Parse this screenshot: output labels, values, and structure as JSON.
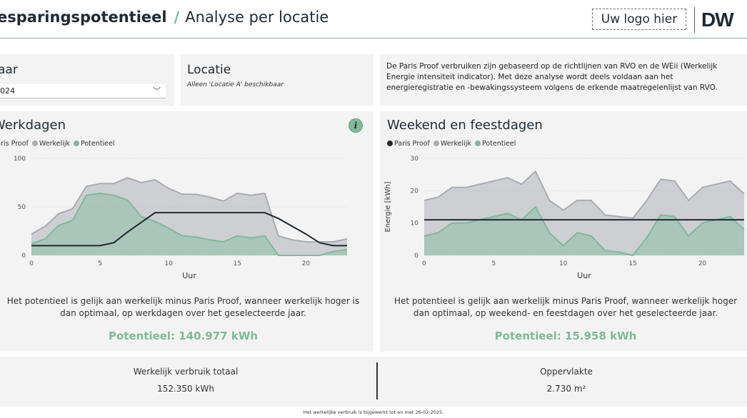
{
  "header": {
    "title_bold": "esparingspotentieel",
    "slash": "/",
    "title_sub": "Analyse per locatie",
    "logo_placeholder": "Uw logo hier",
    "brand": "DW"
  },
  "slicers": {
    "year_label": "aar",
    "year_value": "024",
    "location_label": "Locatie",
    "location_note": "Alleen 'Locatie A' beschikbaar"
  },
  "info_text": {
    "line1": "De Paris Proof verbruiken zijn gebaseerd op de richtlijnen van RVO en de WEii (Werkelijk",
    "line2": "Energie intensiteit indicator). Met deze analyse wordt deels voldaan aan het",
    "line3": "energieregistratie en -bewakingssysteem volgens de erkende maatregelenlijst van RVO."
  },
  "weekdays": {
    "title": "Werkdagen",
    "legend": [
      "Paris Proof",
      "Werkelijk",
      "Potentieel"
    ],
    "xlabel": "Uur",
    "description_line1": "Het potentieel is gelijk aan werkelijk minus Paris Proof, wanneer werkelijk hoger is",
    "description_line2": "dan optimaal, op werkdagen over het geselecteerde jaar.",
    "potential": "Potentieel: 140.977 kWh"
  },
  "weekend": {
    "title": "Weekend en feestdagen",
    "legend": [
      "Paris Proof",
      "Werkelijk",
      "Potentieel"
    ],
    "xlabel": "Uur",
    "ylabel": "Energie [kWh]",
    "description_line1": "Het potentieel is gelijk aan werkelijk minus Paris Proof, wanneer werkelijk hoger",
    "description_line2": "dan optimaal, op weekend- en feestdagen over het geselecteerde jaar.",
    "potential": "Potentieel: 15.958 kWh"
  },
  "totals": {
    "actual_label": "Werkelijk verbruik totaal",
    "actual_value": "152.350 kWh",
    "area_label": "Oppervlakte",
    "area_value": "2.730 m²"
  },
  "footnote": "Het werkelijke verbruik is bijgewerkt tot en met 26-02-2025.",
  "colors": {
    "paris_proof": "#1f2a33",
    "werkelijk": "#a9acb3",
    "potentieel": "#7fb99a",
    "accent": "#7fb99a"
  },
  "chart_data": [
    {
      "type": "area",
      "title": "Werkdagen",
      "xlabel": "Uur",
      "ylabel": "",
      "x": [
        0,
        1,
        2,
        3,
        4,
        5,
        6,
        7,
        8,
        9,
        10,
        11,
        12,
        13,
        14,
        15,
        16,
        17,
        18,
        19,
        20,
        21,
        22,
        23
      ],
      "xticks": [
        0,
        5,
        10,
        15,
        20
      ],
      "yticks": [
        0,
        50,
        100
      ],
      "ylim": [
        0,
        100
      ],
      "xlim": [
        0,
        23
      ],
      "series": [
        {
          "name": "Werkelijk",
          "values": [
            22,
            30,
            43,
            48,
            71,
            74,
            74,
            80,
            75,
            78,
            69,
            63,
            63,
            60,
            56,
            64,
            62,
            64,
            20,
            16,
            14,
            14,
            14,
            17
          ]
        },
        {
          "name": "Potentieel",
          "values": [
            12,
            17,
            31,
            36,
            62,
            64,
            62,
            57,
            40,
            35,
            28,
            20,
            19,
            16,
            14,
            20,
            18,
            20,
            0,
            0,
            0,
            0,
            4,
            6
          ]
        },
        {
          "name": "Paris Proof",
          "values": [
            10,
            10,
            10,
            10,
            10,
            10,
            13,
            24,
            34,
            44,
            44,
            44,
            44,
            44,
            44,
            44,
            44,
            44,
            38,
            30,
            22,
            13,
            10,
            10
          ]
        }
      ]
    },
    {
      "type": "area",
      "title": "Weekend en feestdagen",
      "xlabel": "Uur",
      "ylabel": "Energie [kWh]",
      "x": [
        0,
        1,
        2,
        3,
        4,
        5,
        6,
        7,
        8,
        9,
        10,
        11,
        12,
        13,
        14,
        15,
        16,
        17,
        18,
        19,
        20,
        21,
        22,
        23
      ],
      "xticks": [
        0,
        5,
        10,
        15,
        20
      ],
      "yticks": [
        0,
        10,
        20,
        30
      ],
      "ylim": [
        0,
        30
      ],
      "xlim": [
        0,
        23
      ],
      "series": [
        {
          "name": "Werkelijk",
          "values": [
            17,
            18,
            21,
            21,
            22,
            23,
            24,
            22,
            26,
            17,
            14,
            17,
            17,
            12.5,
            12,
            11.5,
            17,
            23.5,
            23,
            17,
            21,
            22,
            23,
            19
          ]
        },
        {
          "name": "Potentieel",
          "values": [
            6,
            7,
            10,
            10,
            11,
            12,
            13,
            11,
            15,
            7,
            3,
            7,
            6,
            1.5,
            1,
            0,
            5.5,
            12.5,
            12,
            6,
            10,
            11,
            12,
            8
          ]
        },
        {
          "name": "Paris Proof",
          "values": [
            11,
            11,
            11,
            11,
            11,
            11,
            11,
            11,
            11,
            11,
            11,
            11,
            11,
            11,
            11,
            11,
            11,
            11,
            11,
            11,
            11,
            11,
            11,
            11
          ]
        }
      ]
    }
  ]
}
